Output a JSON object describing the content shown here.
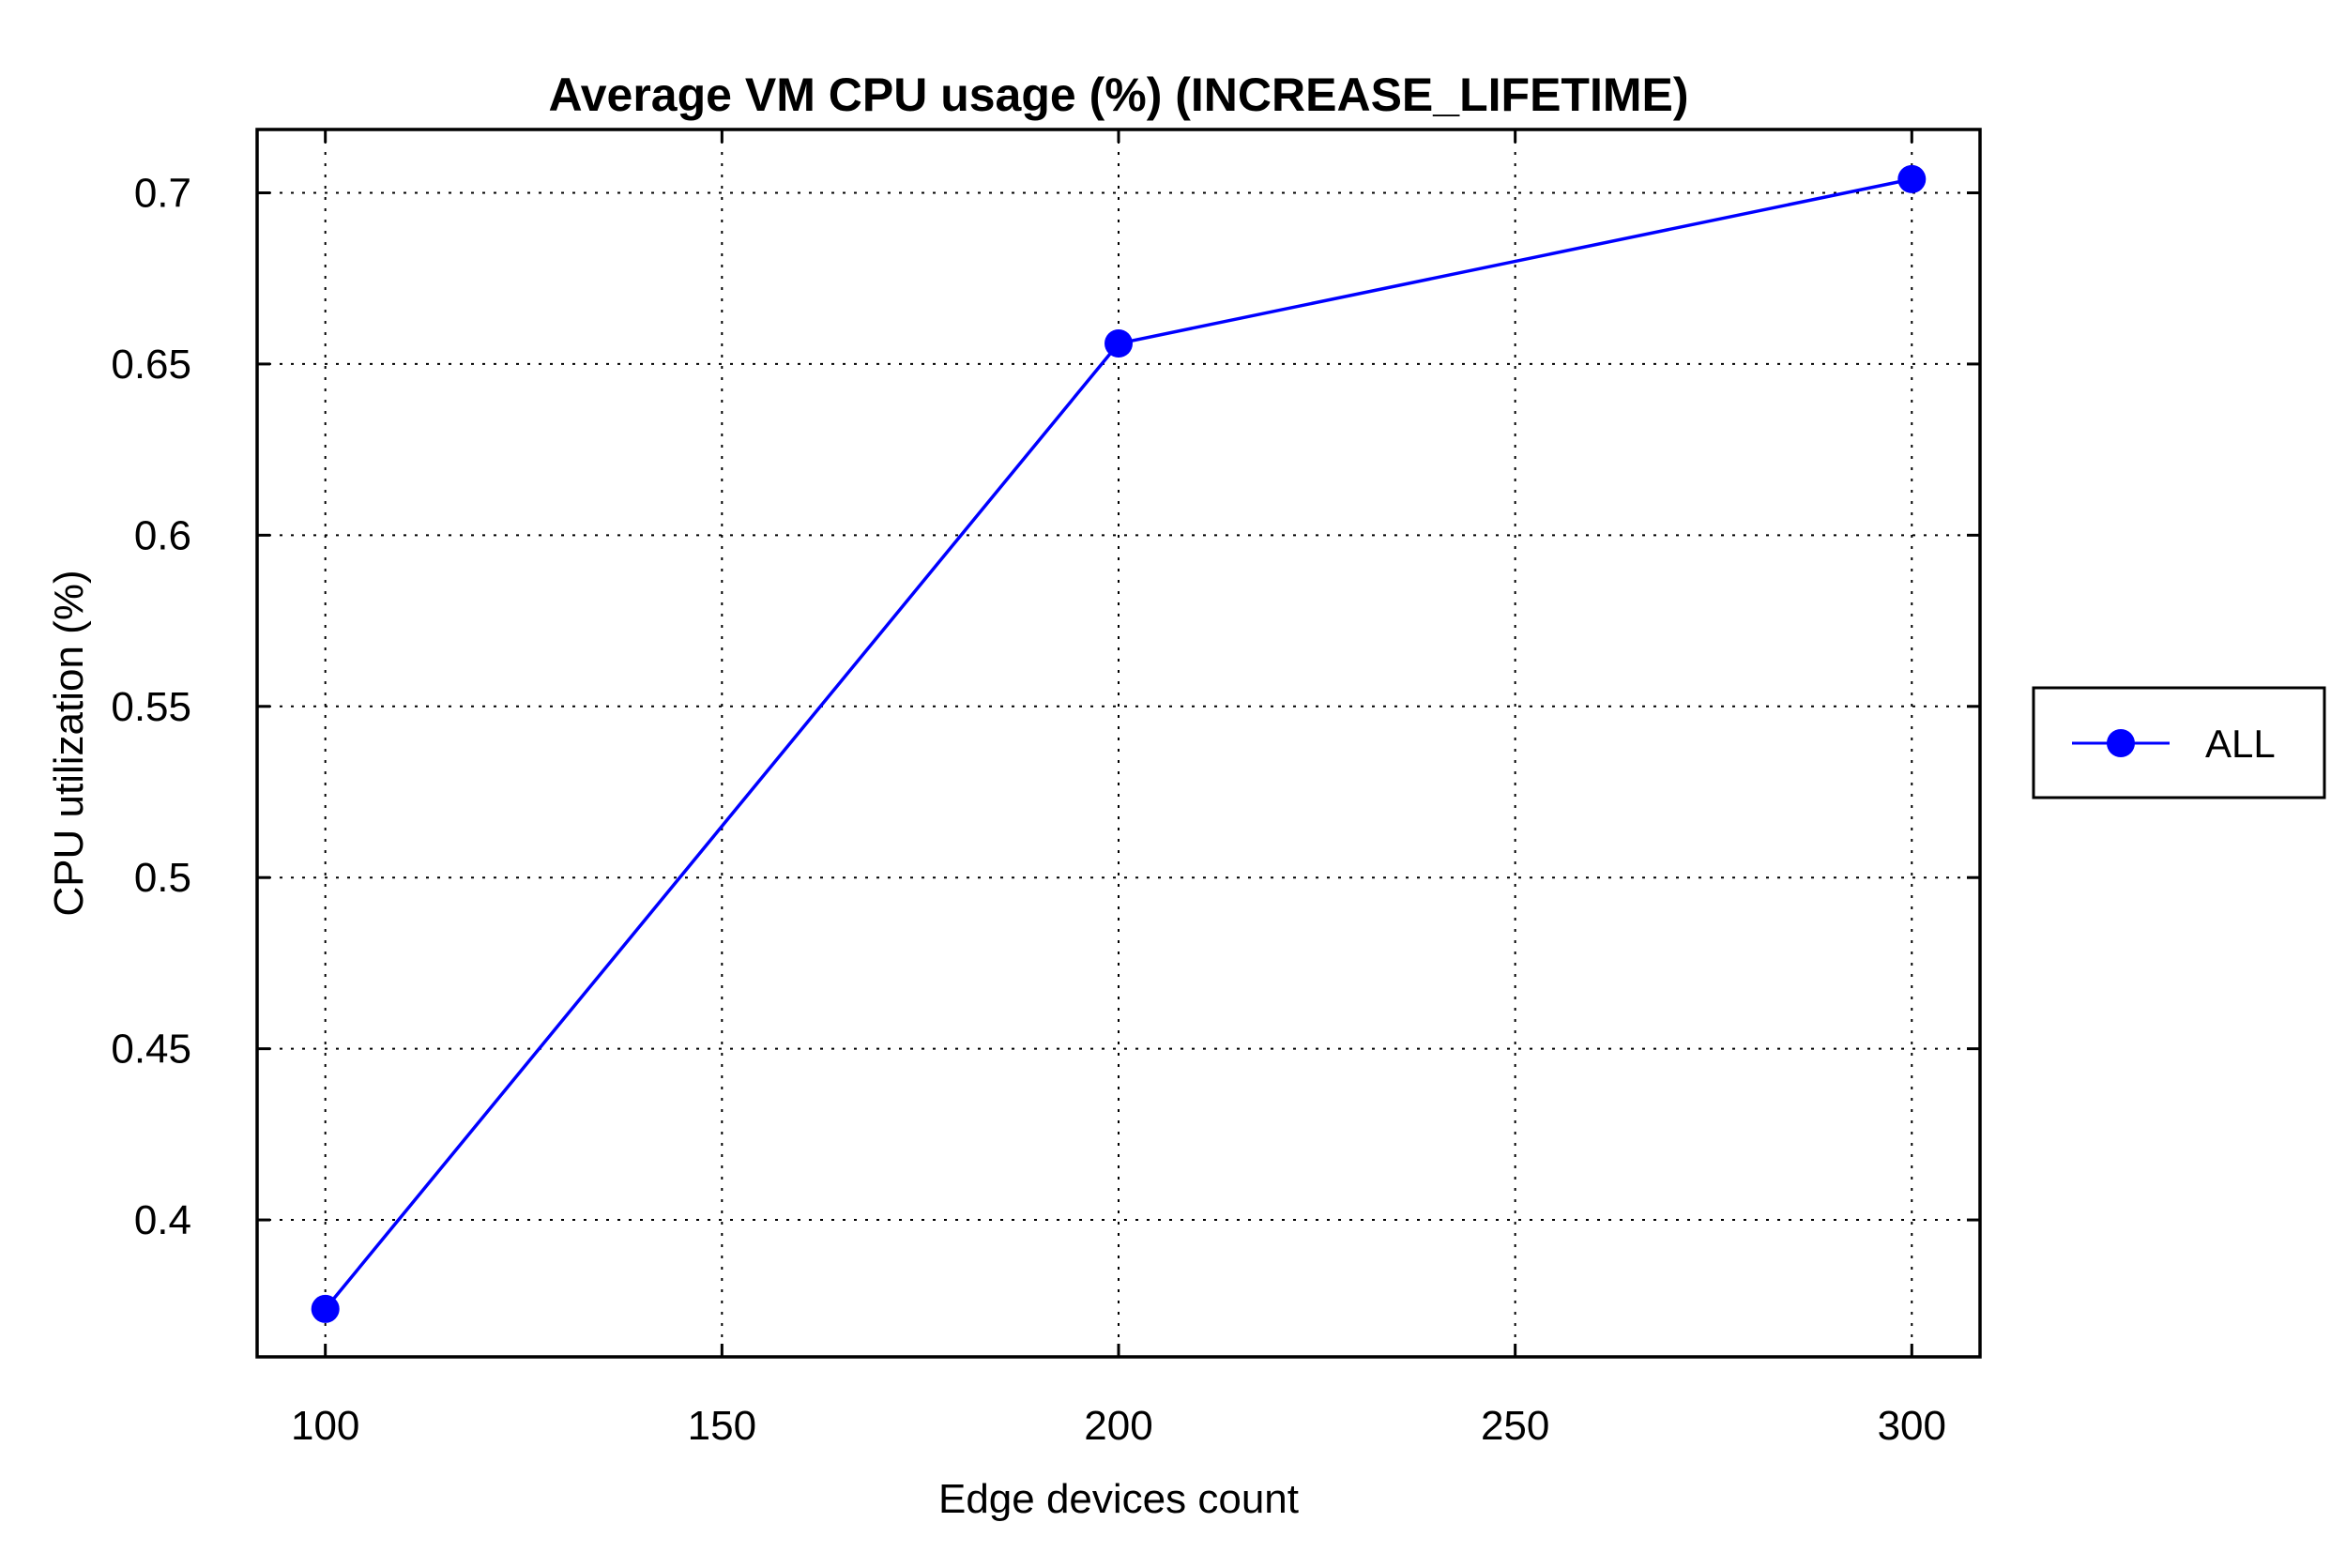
{
  "chart_data": {
    "type": "line",
    "title": "Average VM CPU usage (%) (INCREASE_LIFETIME)",
    "xlabel": "Edge devices count",
    "ylabel": "CPU utilization (%)",
    "x": [
      100,
      200,
      300
    ],
    "series": [
      {
        "name": "ALL",
        "values": [
          0.374,
          0.656,
          0.704
        ],
        "color": "#0000ff",
        "marker": "circle"
      }
    ],
    "x_ticks": [
      100,
      150,
      200,
      250,
      300
    ],
    "x_tick_labels": [
      "100",
      "150",
      "200",
      "250",
      "300"
    ],
    "y_ticks": [
      0.4,
      0.45,
      0.5,
      0.55,
      0.6,
      0.65,
      0.7
    ],
    "y_tick_labels": [
      "0.4",
      "0.45",
      "0.5",
      "0.55",
      "0.6",
      "0.65",
      "0.7"
    ],
    "xlim": [
      91.4,
      308.6
    ],
    "ylim": [
      0.36,
      0.7185
    ],
    "grid": true,
    "grid_style": "dotted",
    "legend_position": "right"
  }
}
